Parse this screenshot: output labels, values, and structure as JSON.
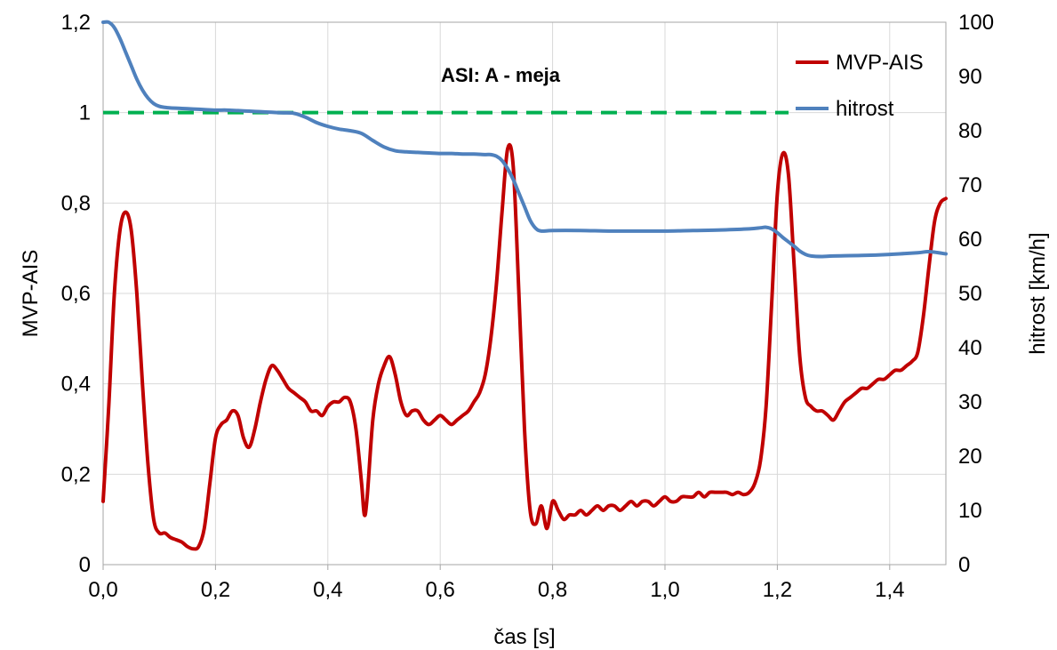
{
  "chart_data": {
    "type": "line",
    "title": "ASI: A - meja",
    "xlabel": "čas [s]",
    "ylabel": "MVP-AIS",
    "y2label": "hitrost [km/h]",
    "xlim": [
      0,
      1.5
    ],
    "ylim": [
      0,
      1.2
    ],
    "y2lim": [
      0,
      100
    ],
    "x_ticks": [
      "0,0",
      "0,2",
      "0,4",
      "0,6",
      "0,8",
      "1,0",
      "1,2",
      "1,4"
    ],
    "y_ticks": [
      "0",
      "0,2",
      "0,4",
      "0,6",
      "0,8",
      "1",
      "1,2"
    ],
    "y2_ticks": [
      "0",
      "10",
      "20",
      "30",
      "40",
      "50",
      "60",
      "70",
      "80",
      "90",
      "100"
    ],
    "grid": true,
    "legend_position": "top-right",
    "series": [
      {
        "name": "MVP-AIS",
        "axis": "left",
        "color": "#c00000",
        "x": [
          0,
          0.01,
          0.02,
          0.03,
          0.04,
          0.05,
          0.06,
          0.07,
          0.08,
          0.09,
          0.1,
          0.11,
          0.12,
          0.13,
          0.14,
          0.15,
          0.16,
          0.17,
          0.18,
          0.19,
          0.2,
          0.21,
          0.22,
          0.23,
          0.24,
          0.25,
          0.26,
          0.27,
          0.28,
          0.29,
          0.3,
          0.31,
          0.32,
          0.33,
          0.34,
          0.35,
          0.36,
          0.37,
          0.38,
          0.39,
          0.4,
          0.41,
          0.42,
          0.43,
          0.44,
          0.45,
          0.46,
          0.465,
          0.47,
          0.48,
          0.49,
          0.5,
          0.51,
          0.52,
          0.53,
          0.54,
          0.55,
          0.56,
          0.57,
          0.58,
          0.59,
          0.6,
          0.61,
          0.62,
          0.63,
          0.64,
          0.65,
          0.66,
          0.67,
          0.68,
          0.69,
          0.7,
          0.71,
          0.72,
          0.73,
          0.74,
          0.75,
          0.76,
          0.77,
          0.78,
          0.79,
          0.8,
          0.81,
          0.82,
          0.83,
          0.84,
          0.85,
          0.86,
          0.87,
          0.88,
          0.89,
          0.9,
          0.91,
          0.92,
          0.93,
          0.94,
          0.95,
          0.96,
          0.97,
          0.98,
          0.99,
          1.0,
          1.01,
          1.02,
          1.03,
          1.04,
          1.05,
          1.06,
          1.07,
          1.08,
          1.09,
          1.1,
          1.11,
          1.12,
          1.13,
          1.14,
          1.15,
          1.16,
          1.17,
          1.18,
          1.19,
          1.2,
          1.21,
          1.22,
          1.23,
          1.24,
          1.25,
          1.26,
          1.27,
          1.28,
          1.29,
          1.3,
          1.31,
          1.32,
          1.33,
          1.34,
          1.35,
          1.36,
          1.37,
          1.38,
          1.39,
          1.4,
          1.41,
          1.42,
          1.43,
          1.44,
          1.45,
          1.46,
          1.47,
          1.48,
          1.49,
          1.5
        ],
        "values": [
          0.14,
          0.35,
          0.6,
          0.74,
          0.78,
          0.74,
          0.6,
          0.4,
          0.22,
          0.1,
          0.07,
          0.07,
          0.06,
          0.055,
          0.05,
          0.04,
          0.035,
          0.04,
          0.08,
          0.18,
          0.28,
          0.31,
          0.32,
          0.34,
          0.33,
          0.28,
          0.26,
          0.3,
          0.36,
          0.41,
          0.44,
          0.43,
          0.41,
          0.39,
          0.38,
          0.37,
          0.36,
          0.34,
          0.34,
          0.33,
          0.35,
          0.36,
          0.36,
          0.37,
          0.36,
          0.3,
          0.18,
          0.11,
          0.15,
          0.32,
          0.4,
          0.44,
          0.46,
          0.42,
          0.36,
          0.33,
          0.34,
          0.34,
          0.32,
          0.31,
          0.32,
          0.33,
          0.32,
          0.31,
          0.32,
          0.33,
          0.34,
          0.36,
          0.38,
          0.42,
          0.5,
          0.62,
          0.78,
          0.92,
          0.88,
          0.6,
          0.3,
          0.12,
          0.09,
          0.13,
          0.08,
          0.14,
          0.12,
          0.1,
          0.11,
          0.11,
          0.12,
          0.11,
          0.12,
          0.13,
          0.12,
          0.13,
          0.13,
          0.12,
          0.13,
          0.14,
          0.13,
          0.14,
          0.14,
          0.13,
          0.14,
          0.15,
          0.14,
          0.14,
          0.15,
          0.15,
          0.15,
          0.16,
          0.15,
          0.16,
          0.16,
          0.16,
          0.16,
          0.155,
          0.16,
          0.155,
          0.16,
          0.18,
          0.23,
          0.35,
          0.58,
          0.82,
          0.91,
          0.86,
          0.66,
          0.46,
          0.37,
          0.35,
          0.34,
          0.34,
          0.33,
          0.32,
          0.34,
          0.36,
          0.37,
          0.38,
          0.39,
          0.39,
          0.4,
          0.41,
          0.41,
          0.42,
          0.43,
          0.43,
          0.44,
          0.45,
          0.47,
          0.55,
          0.66,
          0.76,
          0.8,
          0.81
        ]
      },
      {
        "name": "hitrost",
        "axis": "right",
        "color": "#4f81bd",
        "x": [
          0,
          0.01,
          0.02,
          0.03,
          0.04,
          0.05,
          0.06,
          0.07,
          0.08,
          0.09,
          0.1,
          0.11,
          0.12,
          0.14,
          0.16,
          0.18,
          0.2,
          0.22,
          0.24,
          0.26,
          0.28,
          0.3,
          0.32,
          0.34,
          0.36,
          0.38,
          0.4,
          0.42,
          0.44,
          0.46,
          0.48,
          0.5,
          0.52,
          0.54,
          0.56,
          0.58,
          0.6,
          0.62,
          0.64,
          0.66,
          0.68,
          0.69,
          0.7,
          0.71,
          0.72,
          0.73,
          0.74,
          0.75,
          0.76,
          0.77,
          0.78,
          0.8,
          0.85,
          0.9,
          0.95,
          1.0,
          1.05,
          1.1,
          1.15,
          1.17,
          1.18,
          1.19,
          1.2,
          1.21,
          1.22,
          1.23,
          1.24,
          1.25,
          1.26,
          1.28,
          1.3,
          1.35,
          1.4,
          1.45,
          1.47,
          1.5
        ],
        "values": [
          100,
          100,
          99,
          97,
          94.5,
          92,
          89.5,
          87.5,
          86,
          85,
          84.5,
          84.3,
          84.2,
          84.1,
          84,
          83.9,
          83.8,
          83.8,
          83.7,
          83.6,
          83.5,
          83.4,
          83.3,
          83.2,
          82.5,
          81.5,
          80.8,
          80.3,
          80,
          79.5,
          78.2,
          77,
          76.3,
          76.1,
          76,
          75.9,
          75.8,
          75.8,
          75.7,
          75.7,
          75.6,
          75.6,
          75.3,
          74.5,
          73,
          71,
          68.5,
          66,
          63.5,
          62,
          61.5,
          61.6,
          61.6,
          61.5,
          61.5,
          61.5,
          61.6,
          61.7,
          61.9,
          62.1,
          62.2,
          61.9,
          61.2,
          60.3,
          59.5,
          58.7,
          57.8,
          57.2,
          56.9,
          56.8,
          56.9,
          57,
          57.2,
          57.5,
          57.7,
          57.3
        ]
      },
      {
        "name": "",
        "axis": "left",
        "color": "#00b050",
        "style": "dashed",
        "x": [
          0,
          1.22
        ],
        "values": [
          1,
          1
        ]
      }
    ]
  }
}
